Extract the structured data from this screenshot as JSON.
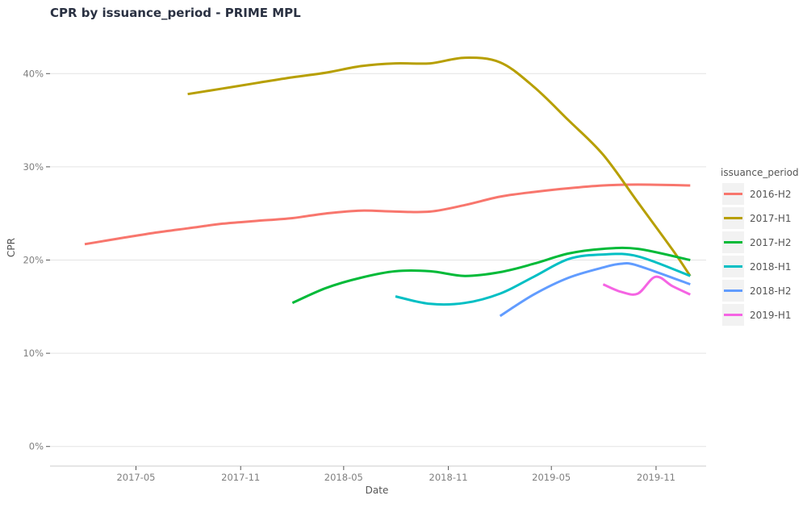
{
  "chart_data": {
    "type": "line",
    "title": "CPR by issuance_period - PRIME MPL",
    "xlabel": "Date",
    "ylabel": "CPR",
    "x_ticks": [
      "2017-05",
      "2017-11",
      "2018-05",
      "2018-11",
      "2019-05",
      "2019-11"
    ],
    "y_ticks": [
      "0%",
      "10%",
      "20%",
      "30%",
      "40%"
    ],
    "xlim": [
      "2016-12-01",
      "2020-01-28"
    ],
    "ylim": [
      -2.1,
      45.3
    ],
    "grid": "horizontal",
    "legend": {
      "title": "issuance_period",
      "position": "right"
    },
    "series": [
      {
        "name": "2016-H2",
        "color": "#F8766D",
        "points": [
          [
            "2017-01-31",
            21.7
          ],
          [
            "2017-03-31",
            22.3
          ],
          [
            "2017-05-31",
            22.9
          ],
          [
            "2017-07-31",
            23.4
          ],
          [
            "2017-09-30",
            23.9
          ],
          [
            "2017-11-30",
            24.2
          ],
          [
            "2018-01-31",
            24.5
          ],
          [
            "2018-03-31",
            25.0
          ],
          [
            "2018-05-31",
            25.3
          ],
          [
            "2018-07-31",
            25.2
          ],
          [
            "2018-09-30",
            25.2
          ],
          [
            "2018-11-30",
            25.9
          ],
          [
            "2019-01-31",
            26.8
          ],
          [
            "2019-03-31",
            27.3
          ],
          [
            "2019-05-31",
            27.7
          ],
          [
            "2019-07-31",
            28.0
          ],
          [
            "2019-09-30",
            28.1
          ],
          [
            "2019-12-31",
            28.0
          ]
        ]
      },
      {
        "name": "2017-H1",
        "color": "#B79F00",
        "points": [
          [
            "2017-07-31",
            37.8
          ],
          [
            "2017-09-30",
            38.4
          ],
          [
            "2017-11-30",
            39.0
          ],
          [
            "2018-01-31",
            39.6
          ],
          [
            "2018-03-31",
            40.1
          ],
          [
            "2018-05-31",
            40.8
          ],
          [
            "2018-07-31",
            41.1
          ],
          [
            "2018-09-30",
            41.1
          ],
          [
            "2018-11-30",
            41.7
          ],
          [
            "2019-01-31",
            41.2
          ],
          [
            "2019-03-31",
            38.6
          ],
          [
            "2019-05-31",
            35.0
          ],
          [
            "2019-07-31",
            31.3
          ],
          [
            "2019-09-30",
            26.2
          ],
          [
            "2019-11-30",
            21.1
          ],
          [
            "2019-12-31",
            18.3
          ]
        ]
      },
      {
        "name": "2017-H2",
        "color": "#00BA38",
        "points": [
          [
            "2018-01-31",
            15.4
          ],
          [
            "2018-03-31",
            17.0
          ],
          [
            "2018-05-31",
            18.1
          ],
          [
            "2018-07-31",
            18.8
          ],
          [
            "2018-09-30",
            18.8
          ],
          [
            "2018-11-30",
            18.3
          ],
          [
            "2019-01-31",
            18.7
          ],
          [
            "2019-03-31",
            19.6
          ],
          [
            "2019-05-31",
            20.7
          ],
          [
            "2019-07-31",
            21.2
          ],
          [
            "2019-09-30",
            21.2
          ],
          [
            "2019-12-31",
            20.0
          ]
        ]
      },
      {
        "name": "2018-H1",
        "color": "#00BFC4",
        "points": [
          [
            "2018-07-31",
            16.1
          ],
          [
            "2018-09-30",
            15.3
          ],
          [
            "2018-11-30",
            15.4
          ],
          [
            "2019-01-31",
            16.4
          ],
          [
            "2019-03-31",
            18.2
          ],
          [
            "2019-05-31",
            20.1
          ],
          [
            "2019-07-31",
            20.6
          ],
          [
            "2019-09-30",
            20.4
          ],
          [
            "2019-12-31",
            18.3
          ]
        ]
      },
      {
        "name": "2018-H2",
        "color": "#619CFF",
        "points": [
          [
            "2019-01-31",
            14.0
          ],
          [
            "2019-03-31",
            16.3
          ],
          [
            "2019-05-31",
            18.1
          ],
          [
            "2019-07-31",
            19.2
          ],
          [
            "2019-08-31",
            19.6
          ],
          [
            "2019-09-30",
            19.4
          ],
          [
            "2019-12-31",
            17.4
          ]
        ]
      },
      {
        "name": "2019-H1",
        "color": "#F564E3",
        "points": [
          [
            "2019-07-31",
            17.4
          ],
          [
            "2019-08-31",
            16.6
          ],
          [
            "2019-09-30",
            16.4
          ],
          [
            "2019-10-31",
            18.2
          ],
          [
            "2019-11-30",
            17.2
          ],
          [
            "2019-12-31",
            16.3
          ]
        ]
      }
    ]
  }
}
